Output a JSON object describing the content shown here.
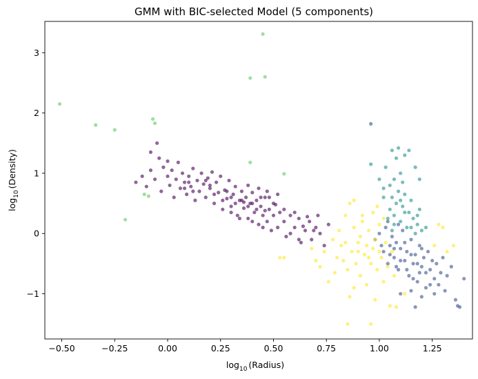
{
  "chart_data": {
    "type": "scatter",
    "title": "GMM with BIC-selected Model (5 components)",
    "xlabel_main": "log",
    "xlabel_sub": "10",
    "xlabel_rest": "(Radius)",
    "ylabel_main": "log",
    "ylabel_sub": "10",
    "ylabel_rest": "(Density)",
    "xlim": [
      -0.58,
      1.44
    ],
    "ylim": [
      -1.75,
      3.52
    ],
    "xticks": [
      -0.5,
      -0.25,
      0.0,
      0.25,
      0.5,
      0.75,
      1.0,
      1.25
    ],
    "xtick_labels": [
      "−0.50",
      "−0.25",
      "0.00",
      "0.25",
      "0.50",
      "0.75",
      "1.00",
      "1.25"
    ],
    "yticks": [
      -1,
      0,
      1,
      2,
      3
    ],
    "ytick_labels": [
      "−1",
      "0",
      "1",
      "2",
      "3"
    ],
    "grid": false,
    "legend": "none",
    "marker_alpha": 0.6,
    "series": [
      {
        "color": "#440154",
        "points": [
          [
            -0.15,
            0.85
          ],
          [
            -0.12,
            0.95
          ],
          [
            -0.1,
            0.78
          ],
          [
            -0.08,
            1.05
          ],
          [
            -0.06,
            0.9
          ],
          [
            -0.04,
            1.25
          ],
          [
            -0.03,
            0.7
          ],
          [
            -0.02,
            1.1
          ],
          [
            0.0,
            0.95
          ],
          [
            0.01,
            0.8
          ],
          [
            0.02,
            1.05
          ],
          [
            0.03,
            0.6
          ],
          [
            0.04,
            0.9
          ],
          [
            0.05,
            1.18
          ],
          [
            0.06,
            0.75
          ],
          [
            0.07,
            1.0
          ],
          [
            0.08,
            0.85
          ],
          [
            0.09,
            0.65
          ],
          [
            0.1,
            0.95
          ],
          [
            0.11,
            0.78
          ],
          [
            0.12,
            1.08
          ],
          [
            0.13,
            0.55
          ],
          [
            0.14,
            0.88
          ],
          [
            0.15,
            0.7
          ],
          [
            0.16,
            1.0
          ],
          [
            0.17,
            0.82
          ],
          [
            0.18,
            0.6
          ],
          [
            0.19,
            0.92
          ],
          [
            0.2,
            0.75
          ],
          [
            0.21,
            1.02
          ],
          [
            0.22,
            0.5
          ],
          [
            0.23,
            0.85
          ],
          [
            0.24,
            0.68
          ],
          [
            0.25,
            0.95
          ],
          [
            0.26,
            0.4
          ],
          [
            0.27,
            0.72
          ],
          [
            0.28,
            0.58
          ],
          [
            0.29,
            0.88
          ],
          [
            0.3,
            0.45
          ],
          [
            0.31,
            0.65
          ],
          [
            0.32,
            0.78
          ],
          [
            0.33,
            0.3
          ],
          [
            0.34,
            0.55
          ],
          [
            0.35,
            0.7
          ],
          [
            0.36,
            0.42
          ],
          [
            0.37,
            0.6
          ],
          [
            0.38,
            0.25
          ],
          [
            0.39,
            0.5
          ],
          [
            0.4,
            0.68
          ],
          [
            0.41,
            0.35
          ],
          [
            0.42,
            0.55
          ],
          [
            0.43,
            0.15
          ],
          [
            0.44,
            0.45
          ],
          [
            0.45,
            0.3
          ],
          [
            0.46,
            0.6
          ],
          [
            0.47,
            0.2
          ],
          [
            0.48,
            0.4
          ],
          [
            0.49,
            0.05
          ],
          [
            0.5,
            0.3
          ],
          [
            0.51,
            0.48
          ],
          [
            0.52,
            0.1
          ],
          [
            0.53,
            0.35
          ],
          [
            0.55,
            0.2
          ],
          [
            0.56,
            -0.05
          ],
          [
            0.58,
            0.3
          ],
          [
            0.6,
            0.1
          ],
          [
            0.62,
            0.25
          ],
          [
            0.63,
            -0.15
          ],
          [
            0.65,
            0.05
          ],
          [
            0.67,
            0.2
          ],
          [
            0.68,
            -0.1
          ],
          [
            0.7,
            0.1
          ],
          [
            0.72,
            0.0
          ],
          [
            0.74,
            -0.2
          ],
          [
            0.76,
            0.15
          ],
          [
            0.35,
            0.55
          ],
          [
            0.38,
            0.45
          ],
          [
            0.4,
            0.5
          ],
          [
            0.42,
            0.4
          ],
          [
            0.36,
            0.52
          ],
          [
            0.44,
            0.6
          ],
          [
            0.46,
            0.38
          ],
          [
            0.3,
            0.6
          ],
          [
            0.32,
            0.5
          ],
          [
            0.28,
            0.7
          ],
          [
            0.2,
            0.8
          ],
          [
            0.18,
            0.88
          ],
          [
            0.1,
            0.85
          ],
          [
            0.08,
            0.75
          ],
          [
            0.12,
            0.7
          ],
          [
            0.22,
            0.65
          ],
          [
            0.26,
            0.55
          ],
          [
            -0.08,
            1.35
          ],
          [
            -0.05,
            1.5
          ],
          [
            0.0,
            1.2
          ],
          [
            0.5,
            0.5
          ],
          [
            0.48,
            0.6
          ],
          [
            0.55,
            0.4
          ],
          [
            0.6,
            0.35
          ],
          [
            0.64,
            0.12
          ],
          [
            0.66,
            0.28
          ],
          [
            0.69,
            0.05
          ],
          [
            0.71,
            0.3
          ],
          [
            0.58,
            0.0
          ],
          [
            0.62,
            -0.1
          ],
          [
            0.45,
            0.1
          ],
          [
            0.4,
            0.2
          ],
          [
            0.34,
            0.25
          ],
          [
            0.3,
            0.35
          ],
          [
            0.52,
            0.65
          ],
          [
            0.47,
            0.7
          ],
          [
            0.43,
            0.75
          ],
          [
            0.38,
            0.8
          ]
        ]
      },
      {
        "color": "#3b528b",
        "points": [
          [
            0.98,
            -0.1
          ],
          [
            1.0,
            0.0
          ],
          [
            1.02,
            -0.3
          ],
          [
            1.03,
            0.1
          ],
          [
            1.04,
            -0.5
          ],
          [
            1.05,
            -0.2
          ],
          [
            1.06,
            -0.05
          ],
          [
            1.07,
            -0.4
          ],
          [
            1.08,
            -0.15
          ],
          [
            1.09,
            -0.6
          ],
          [
            1.1,
            -0.25
          ],
          [
            1.11,
            0.05
          ],
          [
            1.12,
            -0.45
          ],
          [
            1.13,
            -0.3
          ],
          [
            1.14,
            -0.7
          ],
          [
            1.15,
            -0.1
          ],
          [
            1.16,
            -0.5
          ],
          [
            1.17,
            -0.35
          ],
          [
            1.18,
            -0.8
          ],
          [
            1.19,
            -0.2
          ],
          [
            1.2,
            -0.55
          ],
          [
            1.21,
            -0.4
          ],
          [
            1.22,
            -0.9
          ],
          [
            1.23,
            -0.3
          ],
          [
            1.24,
            -0.6
          ],
          [
            1.25,
            -0.45
          ],
          [
            1.26,
            -0.75
          ],
          [
            1.27,
            -0.5
          ],
          [
            1.28,
            -0.85
          ],
          [
            1.29,
            -0.65
          ],
          [
            1.3,
            -0.4
          ],
          [
            1.31,
            -0.95
          ],
          [
            1.32,
            -0.7
          ],
          [
            1.34,
            -0.55
          ],
          [
            1.36,
            -1.1
          ],
          [
            1.37,
            -1.2
          ],
          [
            1.38,
            -1.22
          ],
          [
            1.4,
            -0.75
          ],
          [
            1.05,
            -0.35
          ],
          [
            1.07,
            -0.25
          ],
          [
            1.1,
            -0.45
          ],
          [
            1.12,
            -0.15
          ],
          [
            1.15,
            -0.35
          ],
          [
            1.18,
            -0.5
          ],
          [
            1.2,
            -0.25
          ],
          [
            1.22,
            -0.65
          ],
          [
            1.08,
            -0.55
          ],
          [
            1.13,
            -0.6
          ],
          [
            1.16,
            -0.75
          ],
          [
            1.19,
            -0.65
          ],
          [
            1.24,
            -0.85
          ],
          [
            1.26,
            -1.0
          ],
          [
            1.1,
            -1.0
          ],
          [
            1.15,
            -0.95
          ],
          [
            1.17,
            -1.22
          ],
          [
            1.2,
            -1.05
          ],
          [
            1.09,
            0.15
          ],
          [
            1.04,
            0.2
          ],
          [
            1.01,
            -0.2
          ],
          [
            0.96,
            1.82
          ]
        ]
      },
      {
        "color": "#21918c",
        "points": [
          [
            1.05,
            0.4
          ],
          [
            1.06,
            0.6
          ],
          [
            1.07,
            0.3
          ],
          [
            1.08,
            0.5
          ],
          [
            1.09,
            0.7
          ],
          [
            1.1,
            0.2
          ],
          [
            1.11,
            0.45
          ],
          [
            1.12,
            0.65
          ],
          [
            1.13,
            0.1
          ],
          [
            1.14,
            0.35
          ],
          [
            1.15,
            0.55
          ],
          [
            1.16,
            0.25
          ],
          [
            1.17,
            0.0
          ],
          [
            1.18,
            0.15
          ],
          [
            1.19,
            0.4
          ],
          [
            1.2,
            0.05
          ],
          [
            1.05,
            0.8
          ],
          [
            1.07,
            0.9
          ],
          [
            1.1,
            1.0
          ],
          [
            1.03,
            1.1
          ],
          [
            1.08,
            1.25
          ],
          [
            1.12,
            1.3
          ],
          [
            1.06,
            1.38
          ],
          [
            1.09,
            1.42
          ],
          [
            1.14,
            1.38
          ],
          [
            1.17,
            1.1
          ],
          [
            1.19,
            0.9
          ],
          [
            1.02,
            0.6
          ],
          [
            1.04,
            0.25
          ],
          [
            1.06,
            0.05
          ],
          [
            1.1,
            0.55
          ],
          [
            1.12,
            0.35
          ],
          [
            1.15,
            0.1
          ],
          [
            1.18,
            0.3
          ],
          [
            1.22,
            0.1
          ],
          [
            0.96,
            1.15
          ],
          [
            1.0,
            0.9
          ],
          [
            1.02,
            0.75
          ],
          [
            1.07,
            0.15
          ],
          [
            1.11,
            0.85
          ]
        ]
      },
      {
        "color": "#5ec962",
        "points": [
          [
            -0.51,
            2.15
          ],
          [
            -0.34,
            1.8
          ],
          [
            -0.25,
            1.72
          ],
          [
            -0.2,
            0.23
          ],
          [
            -0.09,
            0.62
          ],
          [
            -0.07,
            1.9
          ],
          [
            -0.06,
            1.83
          ],
          [
            0.39,
            1.18
          ],
          [
            0.39,
            2.58
          ],
          [
            0.45,
            3.31
          ],
          [
            0.46,
            2.6
          ],
          [
            0.55,
            0.99
          ],
          [
            -0.11,
            0.65
          ]
        ]
      },
      {
        "color": "#fde725",
        "points": [
          [
            0.78,
            -0.1
          ],
          [
            0.8,
            -0.4
          ],
          [
            0.82,
            -0.2
          ],
          [
            0.84,
            0.3
          ],
          [
            0.85,
            -0.6
          ],
          [
            0.86,
            -1.05
          ],
          [
            0.87,
            -0.3
          ],
          [
            0.88,
            0.1
          ],
          [
            0.89,
            -0.5
          ],
          [
            0.9,
            -0.15
          ],
          [
            0.91,
            -0.7
          ],
          [
            0.92,
            0.2
          ],
          [
            0.93,
            -0.35
          ],
          [
            0.94,
            -0.85
          ],
          [
            0.95,
            0.05
          ],
          [
            0.96,
            -0.5
          ],
          [
            0.97,
            -0.25
          ],
          [
            0.98,
            -1.1
          ],
          [
            0.99,
            -0.6
          ],
          [
            1.0,
            0.15
          ],
          [
            1.01,
            -0.4
          ],
          [
            1.02,
            -0.8
          ],
          [
            1.03,
            -0.15
          ],
          [
            1.04,
            -0.55
          ],
          [
            1.05,
            -1.2
          ],
          [
            1.06,
            -0.3
          ],
          [
            1.07,
            -0.7
          ],
          [
            0.85,
            -1.5
          ],
          [
            0.96,
            -1.5
          ],
          [
            0.72,
            -0.55
          ],
          [
            0.74,
            -0.3
          ],
          [
            0.76,
            -0.8
          ],
          [
            0.79,
            -0.65
          ],
          [
            0.81,
            0.05
          ],
          [
            0.83,
            -0.45
          ],
          [
            0.88,
            -0.9
          ],
          [
            0.91,
            -0.05
          ],
          [
            0.94,
            -0.2
          ],
          [
            0.97,
            0.35
          ],
          [
            1.0,
            -0.3
          ],
          [
            0.55,
            -0.4
          ],
          [
            0.53,
            -0.4
          ],
          [
            0.68,
            -0.25
          ],
          [
            0.7,
            -0.45
          ],
          [
            1.26,
            -0.2
          ],
          [
            1.3,
            0.1
          ],
          [
            1.28,
            0.15
          ],
          [
            1.32,
            -0.3
          ],
          [
            1.35,
            -0.2
          ],
          [
            1.08,
            -1.22
          ],
          [
            1.12,
            -1.0
          ],
          [
            0.86,
            0.5
          ],
          [
            0.88,
            0.55
          ],
          [
            0.92,
            0.3
          ],
          [
            0.99,
            0.45
          ],
          [
            1.02,
            0.25
          ],
          [
            0.84,
            -0.15
          ],
          [
            0.9,
            -0.3
          ],
          [
            0.95,
            -0.4
          ],
          [
            0.98,
            -0.1
          ]
        ]
      }
    ]
  }
}
